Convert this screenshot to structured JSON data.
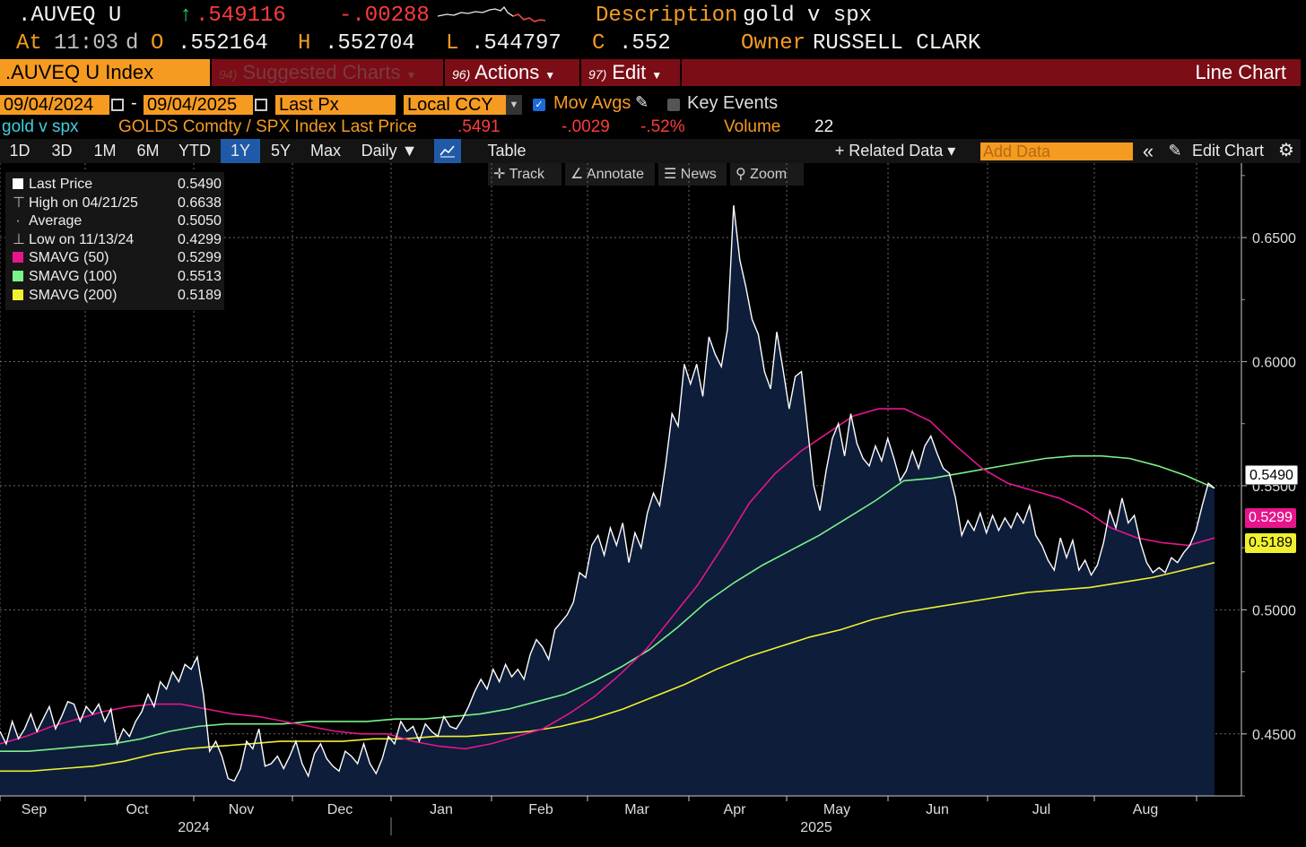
{
  "header": {
    "ticker": ".AUVEQ U",
    "arrow": "↑",
    "last": ".549116",
    "change": "-.00288",
    "description_label": "Description",
    "description": "gold v spx",
    "at_label": "At",
    "time": "11:03",
    "d": "d",
    "open_label": "O",
    "open": ".552164",
    "high_label": "H",
    "high": ".552704",
    "low_label": "L",
    "low": ".544797",
    "close_label": "C",
    "close": ".552",
    "owner_label": "Owner",
    "owner": "RUSSELL CLARK"
  },
  "function_bar": {
    "security": ".AUVEQ U Index",
    "suggested_num": "94)",
    "suggested": "Suggested Charts",
    "actions_num": "96)",
    "actions": "Actions",
    "edit_num": "97)",
    "edit": "Edit",
    "chart_type": "Line Chart"
  },
  "controls": {
    "start_date": "09/04/2024",
    "dash": "-",
    "end_date": "09/04/2025",
    "field": "Last Px",
    "currency": "Local CCY",
    "mov_avgs": "Mov Avgs",
    "key_events": "Key Events"
  },
  "info_row": {
    "name": "gold v spx",
    "formula": "GOLDS Comdty / SPX Index Last Price",
    "price": ".5491",
    "change": "-.0029",
    "pct": "-.52%",
    "volume_label": "Volume",
    "volume": "22"
  },
  "toolbar": {
    "periods": [
      "1D",
      "3D",
      "1M",
      "6M",
      "YTD",
      "1Y",
      "5Y",
      "Max"
    ],
    "active_period": "1Y",
    "frequency": "Daily ▼",
    "table": "Table",
    "related": "+ Related Data ▾",
    "add_data_placeholder": "Add Data",
    "collapse": "«",
    "edit_chart": "Edit Chart"
  },
  "sub_toolbar": {
    "track": "Track",
    "annotate": "Annotate",
    "news": "News",
    "zoom": "Zoom"
  },
  "legend": [
    {
      "label": "Last Price",
      "value": "0.5490",
      "color": "#ffffff",
      "kind": "swatch"
    },
    {
      "label": "High on 04/21/25",
      "value": "0.6638",
      "color": "#cccccc",
      "kind": "high"
    },
    {
      "label": "Average",
      "value": "0.5050",
      "color": "#cccccc",
      "kind": "avg"
    },
    {
      "label": "Low on 11/13/24",
      "value": "0.4299",
      "color": "#cccccc",
      "kind": "low"
    },
    {
      "label": "SMAVG (50)",
      "value": "0.5299",
      "color": "#e6158c",
      "kind": "swatch"
    },
    {
      "label": "SMAVG (100)",
      "value": "0.5513",
      "color": "#7af28a",
      "kind": "swatch"
    },
    {
      "label": "SMAVG (200)",
      "value": "0.5189",
      "color": "#f0f030",
      "kind": "swatch"
    }
  ],
  "colors": {
    "price_line": "#ffffff",
    "area_fill": "#0d1d3a",
    "sma50": "#e6158c",
    "sma100": "#7af28a",
    "sma200": "#f0f030",
    "orange": "#f59b22"
  },
  "chart_data": {
    "type": "line",
    "title": "",
    "ylim": [
      0.425,
      0.68
    ],
    "y_ticks": [
      "0.4500",
      "0.5000",
      "0.5500",
      "0.6000",
      "0.6500"
    ],
    "x_month_labels": [
      "Sep",
      "Oct",
      "Nov",
      "Dec",
      "Jan",
      "Feb",
      "Mar",
      "Apr",
      "May",
      "Jun",
      "Jul",
      "Aug"
    ],
    "year_labels": [
      "2024",
      "2025"
    ],
    "last_price_tag": "0.5490",
    "sma50_tag": "0.5299",
    "sma200_tag": "0.5189",
    "grid": true,
    "series": [
      {
        "name": "Last Price",
        "values": [
          0.451,
          0.446,
          0.455,
          0.448,
          0.452,
          0.458,
          0.451,
          0.456,
          0.461,
          0.452,
          0.457,
          0.463,
          0.462,
          0.455,
          0.461,
          0.458,
          0.462,
          0.455,
          0.46,
          0.446,
          0.452,
          0.449,
          0.455,
          0.459,
          0.466,
          0.461,
          0.471,
          0.468,
          0.475,
          0.471,
          0.478,
          0.476,
          0.481,
          0.466,
          0.443,
          0.447,
          0.441,
          0.432,
          0.431,
          0.436,
          0.447,
          0.444,
          0.452,
          0.437,
          0.438,
          0.441,
          0.436,
          0.441,
          0.447,
          0.438,
          0.433,
          0.442,
          0.446,
          0.44,
          0.437,
          0.435,
          0.443,
          0.441,
          0.438,
          0.446,
          0.438,
          0.434,
          0.44,
          0.449,
          0.446,
          0.455,
          0.451,
          0.453,
          0.447,
          0.454,
          0.451,
          0.449,
          0.457,
          0.453,
          0.452,
          0.456,
          0.461,
          0.467,
          0.472,
          0.468,
          0.476,
          0.471,
          0.478,
          0.473,
          0.476,
          0.472,
          0.482,
          0.488,
          0.485,
          0.48,
          0.492,
          0.495,
          0.498,
          0.503,
          0.515,
          0.513,
          0.526,
          0.53,
          0.522,
          0.533,
          0.526,
          0.535,
          0.519,
          0.531,
          0.525,
          0.539,
          0.547,
          0.542,
          0.559,
          0.579,
          0.574,
          0.599,
          0.591,
          0.599,
          0.586,
          0.61,
          0.603,
          0.598,
          0.613,
          0.663,
          0.641,
          0.63,
          0.617,
          0.611,
          0.596,
          0.589,
          0.612,
          0.597,
          0.581,
          0.594,
          0.596,
          0.573,
          0.55,
          0.54,
          0.556,
          0.569,
          0.575,
          0.562,
          0.579,
          0.567,
          0.561,
          0.558,
          0.566,
          0.56,
          0.569,
          0.561,
          0.552,
          0.556,
          0.564,
          0.557,
          0.566,
          0.57,
          0.563,
          0.557,
          0.555,
          0.545,
          0.53,
          0.536,
          0.532,
          0.539,
          0.531,
          0.538,
          0.532,
          0.537,
          0.533,
          0.539,
          0.535,
          0.542,
          0.53,
          0.526,
          0.52,
          0.516,
          0.529,
          0.521,
          0.528,
          0.516,
          0.52,
          0.514,
          0.518,
          0.527,
          0.54,
          0.533,
          0.545,
          0.535,
          0.538,
          0.527,
          0.519,
          0.515,
          0.517,
          0.515,
          0.521,
          0.519,
          0.523,
          0.526,
          0.532,
          0.542,
          0.551,
          0.549
        ]
      },
      {
        "name": "SMAVG (50)",
        "values": [
          0.446,
          0.449,
          0.453,
          0.456,
          0.459,
          0.461,
          0.462,
          0.462,
          0.46,
          0.458,
          0.457,
          0.455,
          0.453,
          0.451,
          0.45,
          0.45,
          0.447,
          0.445,
          0.444,
          0.446,
          0.449,
          0.452,
          0.458,
          0.465,
          0.474,
          0.484,
          0.497,
          0.51,
          0.526,
          0.543,
          0.555,
          0.564,
          0.571,
          0.578,
          0.581,
          0.581,
          0.576,
          0.566,
          0.557,
          0.551,
          0.548,
          0.545,
          0.54,
          0.533,
          0.529,
          0.527,
          0.526,
          0.529
        ]
      },
      {
        "name": "SMAVG (100)",
        "values": [
          0.443,
          0.443,
          0.444,
          0.445,
          0.446,
          0.448,
          0.451,
          0.453,
          0.454,
          0.454,
          0.454,
          0.455,
          0.455,
          0.455,
          0.456,
          0.456,
          0.457,
          0.458,
          0.46,
          0.463,
          0.466,
          0.471,
          0.477,
          0.484,
          0.493,
          0.503,
          0.511,
          0.518,
          0.524,
          0.53,
          0.537,
          0.544,
          0.552,
          0.553,
          0.555,
          0.557,
          0.559,
          0.561,
          0.562,
          0.562,
          0.561,
          0.558,
          0.554,
          0.549
        ]
      },
      {
        "name": "SMAVG (200)",
        "values": [
          0.435,
          0.435,
          0.436,
          0.437,
          0.439,
          0.442,
          0.444,
          0.445,
          0.446,
          0.447,
          0.447,
          0.447,
          0.448,
          0.448,
          0.449,
          0.449,
          0.45,
          0.451,
          0.453,
          0.456,
          0.46,
          0.465,
          0.47,
          0.476,
          0.481,
          0.485,
          0.489,
          0.492,
          0.496,
          0.499,
          0.501,
          0.503,
          0.505,
          0.507,
          0.508,
          0.509,
          0.511,
          0.513,
          0.516,
          0.519
        ]
      }
    ]
  }
}
